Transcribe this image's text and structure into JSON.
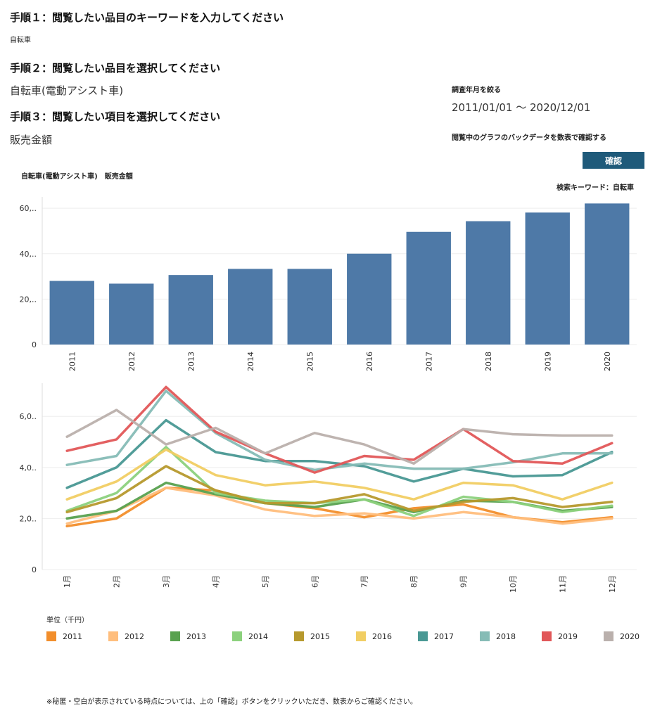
{
  "step1": {
    "title": "手順１：閲覧したい品目のキーワードを入力してください",
    "keyword": "自転車"
  },
  "step2": {
    "title": "手順２：閲覧したい品目を選択してください",
    "selected": "自転車(電動アシスト車)"
  },
  "step3": {
    "title": "手順３：閲覧したい項目を選択してください",
    "selected": "販売金額"
  },
  "period": {
    "label": "調査年月を絞る",
    "value": "2011/01/01 ～ 2020/12/01"
  },
  "backdata": {
    "label": "閲覧中のグラフのバックデータを数表で確認する",
    "button": "確認"
  },
  "chart_header": {
    "title": "自転車(電動アシスト車)　販売金額",
    "search_keyword": "検索キーワード：自転車"
  },
  "chart_data": [
    {
      "type": "bar",
      "categories": [
        "2011",
        "2012",
        "2013",
        "2014",
        "2015",
        "2016",
        "2017",
        "2018",
        "2019",
        "2020"
      ],
      "values": [
        28,
        26.8,
        30.6,
        33.3,
        33.3,
        40,
        49.6,
        54.3,
        58.1,
        62.1
      ],
      "ylim": [
        0,
        65
      ],
      "ytick_labels": [
        "0",
        "20,..",
        "40,..",
        "60,.."
      ],
      "yticks": [
        0,
        20,
        40,
        60
      ],
      "color": "#4e79a7"
    },
    {
      "type": "line",
      "x": [
        "1月",
        "2月",
        "3月",
        "4月",
        "5月",
        "6月",
        "7月",
        "8月",
        "9月",
        "10月",
        "11月",
        "12月"
      ],
      "ylim": [
        0,
        7.3
      ],
      "ytick_labels": [
        "0",
        "2,0..",
        "4,0..",
        "6,0.."
      ],
      "yticks": [
        0,
        2,
        4,
        6
      ],
      "unit_label": "単位（千円）",
      "series": [
        {
          "name": "2011",
          "color": "#f28e2b",
          "values": [
            1.7,
            2.0,
            3.2,
            3.1,
            2.6,
            2.4,
            2.05,
            2.4,
            2.55,
            2.05,
            1.85,
            2.05
          ]
        },
        {
          "name": "2012",
          "color": "#ffbe7d",
          "values": [
            1.8,
            2.3,
            3.2,
            2.9,
            2.35,
            2.1,
            2.2,
            2.0,
            2.25,
            2.05,
            1.8,
            2.0
          ]
        },
        {
          "name": "2013",
          "color": "#59a14f",
          "values": [
            2.0,
            2.3,
            3.4,
            2.95,
            2.6,
            2.45,
            2.75,
            2.25,
            2.7,
            2.65,
            2.3,
            2.45
          ]
        },
        {
          "name": "2014",
          "color": "#8cd17d",
          "values": [
            2.3,
            3.0,
            4.8,
            3.0,
            2.7,
            2.6,
            2.75,
            2.1,
            2.85,
            2.65,
            2.25,
            2.5
          ]
        },
        {
          "name": "2015",
          "color": "#b6992d",
          "values": [
            2.25,
            2.8,
            4.05,
            3.1,
            2.6,
            2.6,
            2.95,
            2.3,
            2.65,
            2.8,
            2.45,
            2.65
          ]
        },
        {
          "name": "2016",
          "color": "#f1ce63",
          "values": [
            2.75,
            3.45,
            4.7,
            3.7,
            3.3,
            3.45,
            3.2,
            2.75,
            3.4,
            3.3,
            2.75,
            3.4
          ]
        },
        {
          "name": "2017",
          "color": "#499894",
          "values": [
            3.2,
            4.0,
            5.85,
            4.6,
            4.25,
            4.25,
            4.05,
            3.45,
            3.95,
            3.65,
            3.7,
            4.6
          ]
        },
        {
          "name": "2018",
          "color": "#86bcb6",
          "values": [
            4.1,
            4.45,
            7.0,
            5.35,
            4.3,
            3.9,
            4.15,
            3.95,
            3.95,
            4.2,
            4.55,
            4.55
          ]
        },
        {
          "name": "2019",
          "color": "#e15759",
          "values": [
            4.65,
            5.1,
            7.15,
            5.4,
            4.55,
            3.8,
            4.45,
            4.3,
            5.5,
            4.25,
            4.15,
            4.95
          ]
        },
        {
          "name": "2020",
          "color": "#bab0ac",
          "values": [
            5.2,
            6.25,
            4.9,
            5.55,
            4.55,
            5.35,
            4.9,
            4.15,
            5.5,
            5.3,
            5.25,
            5.25
          ]
        }
      ]
    }
  ],
  "footnote": "※秘匿・空白が表示されている時点については、上の「確認」ボタンをクリックいただき、数表からご確認ください。"
}
